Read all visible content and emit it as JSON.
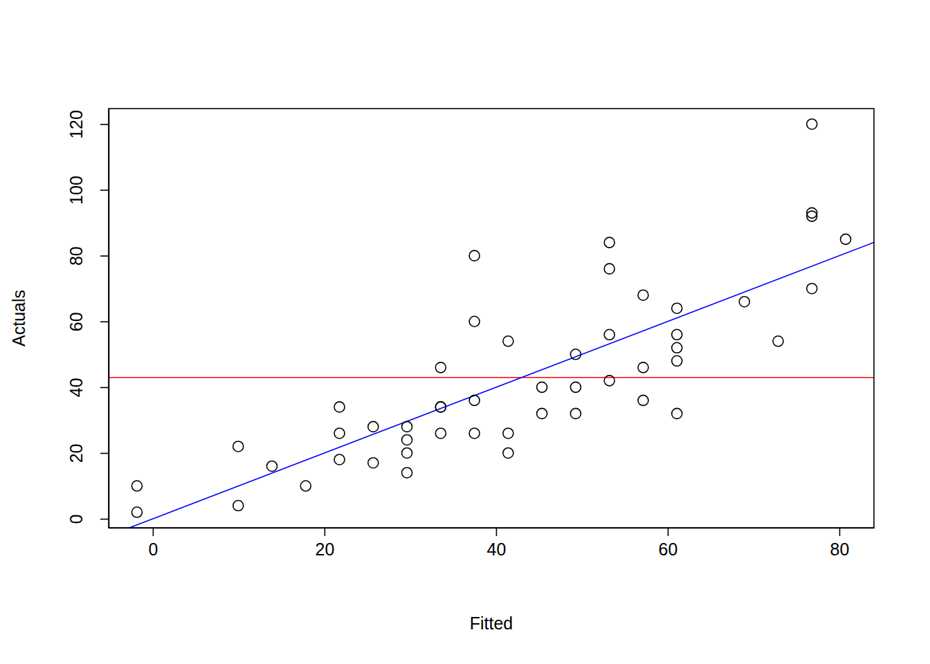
{
  "chart_data": {
    "type": "scatter",
    "x_label": "Fitted",
    "y_label": "Actuals",
    "x": [
      -1.849,
      -1.849,
      9.948,
      9.948,
      13.88,
      17.813,
      21.745,
      21.745,
      21.745,
      25.677,
      25.677,
      29.61,
      29.61,
      29.61,
      29.61,
      33.542,
      33.542,
      33.542,
      33.542,
      37.474,
      37.474,
      37.474,
      37.474,
      41.407,
      41.407,
      41.407,
      45.339,
      45.339,
      49.271,
      49.271,
      49.271,
      53.204,
      53.204,
      53.204,
      53.204,
      57.136,
      57.136,
      57.136,
      61.069,
      61.069,
      61.069,
      61.069,
      61.069,
      68.933,
      72.866,
      76.798,
      76.798,
      76.798,
      76.798,
      80.731
    ],
    "values": [
      2,
      10,
      4,
      22,
      16,
      10,
      18,
      26,
      34,
      17,
      28,
      14,
      20,
      24,
      28,
      26,
      34,
      34,
      46,
      26,
      36,
      60,
      80,
      20,
      26,
      54,
      32,
      40,
      32,
      40,
      50,
      42,
      56,
      76,
      84,
      36,
      46,
      68,
      32,
      48,
      52,
      56,
      64,
      66,
      54,
      70,
      92,
      93,
      120,
      85
    ],
    "marker": "circle-open",
    "color": "#000000",
    "xlim": [
      -5.15,
      84.03
    ],
    "ylim": [
      -2.72,
      124.72
    ],
    "xticks": [
      0,
      20,
      40,
      60,
      80
    ],
    "yticks": [
      0,
      20,
      40,
      60,
      80,
      100,
      120
    ],
    "fit_line": {
      "intercept": 0,
      "slope": 1,
      "color": "#0000ff"
    },
    "mean_line": {
      "y": 42.98,
      "color": "#ff0000"
    }
  }
}
